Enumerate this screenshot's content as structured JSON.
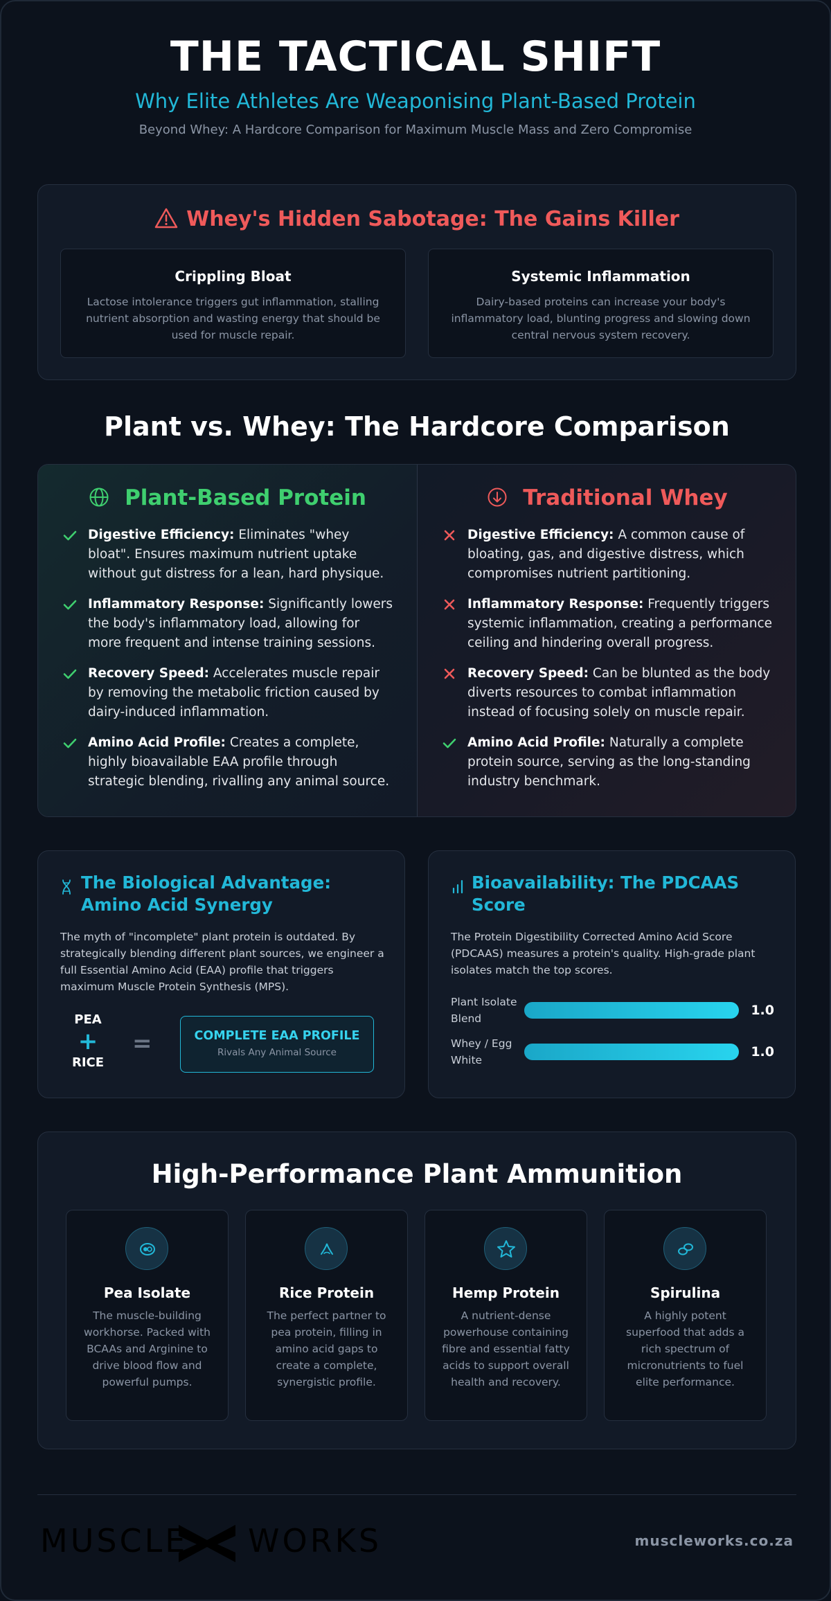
{
  "header": {
    "title": "THE TACTICAL SHIFT",
    "subtitle": "Why Elite Athletes Are Weaponising Plant-Based Protein",
    "tagline": "Beyond Whey: A Hardcore Comparison for Maximum Muscle Mass and Zero Compromise"
  },
  "sabotage": {
    "title": "Whey's Hidden Sabotage: The Gains Killer",
    "icon": "warning-icon",
    "accent": "#ef5a5a",
    "cards": [
      {
        "title": "Crippling Bloat",
        "body": "Lactose intolerance triggers gut inflammation, stalling nutrient absorption and wasting energy that should be used for muscle repair."
      },
      {
        "title": "Systemic Inflammation",
        "body": "Dairy-based proteins can increase your body's inflammatory load, blunting progress and slowing down central nervous system recovery."
      }
    ]
  },
  "comparison": {
    "heading": "Plant vs. Whey: The Hardcore Comparison",
    "plant": {
      "title": "Plant-Based Protein",
      "icon": "globe-icon",
      "color": "#3fcf6f",
      "items": [
        {
          "label": "Digestive Efficiency:",
          "text": " Eliminates \"whey bloat\". Ensures maximum nutrient uptake without gut distress for a lean, hard physique.",
          "mark": "check"
        },
        {
          "label": "Inflammatory Response:",
          "text": " Significantly lowers the body's inflammatory load, allowing for more frequent and intense training sessions.",
          "mark": "check"
        },
        {
          "label": "Recovery Speed:",
          "text": " Accelerates muscle repair by removing the metabolic friction caused by dairy-induced inflammation.",
          "mark": "check"
        },
        {
          "label": "Amino Acid Profile:",
          "text": " Creates a complete, highly bioavailable EAA profile through strategic blending, rivalling any animal source.",
          "mark": "check"
        }
      ]
    },
    "whey": {
      "title": "Traditional Whey",
      "icon": "arrow-down-circle-icon",
      "color": "#ef5a5a",
      "items": [
        {
          "label": "Digestive Efficiency:",
          "text": " A common cause of bloating, gas, and digestive distress, which compromises nutrient partitioning.",
          "mark": "cross"
        },
        {
          "label": "Inflammatory Response:",
          "text": " Frequently triggers systemic inflammation, creating a performance ceiling and hindering overall progress.",
          "mark": "cross"
        },
        {
          "label": "Recovery Speed:",
          "text": " Can be blunted as the body diverts resources to combat inflammation instead of focusing solely on muscle repair.",
          "mark": "cross"
        },
        {
          "label": "Amino Acid Profile:",
          "text": " Naturally a complete protein source, serving as the long-standing industry benchmark.",
          "mark": "check"
        }
      ]
    }
  },
  "synergy": {
    "title": "The Biological Advantage: Amino Acid Synergy",
    "icon": "dna-icon",
    "body": "The myth of \"incomplete\" plant protein is outdated. By strategically blending different plant sources, we engineer a full Essential Amino Acid (EAA) profile that triggers maximum Muscle Protein Synthesis (MPS).",
    "pea": "PEA",
    "plus": "+",
    "rice": "RICE",
    "equals": "=",
    "result_title": "COMPLETE EAA PROFILE",
    "result_sub": "Rivals Any Animal Source"
  },
  "pdcaas": {
    "title": "Bioavailability: The PDCAAS Score",
    "icon": "bar-chart-icon",
    "body": "The Protein Digestibility Corrected Amino Acid Score (PDCAAS) measures a protein's quality. High-grade plant isolates match the top scores.",
    "bars": [
      {
        "label": "Plant Isolate Blend",
        "value": "1.0",
        "fraction": 1.0
      },
      {
        "label": "Whey / Egg White",
        "value": "1.0",
        "fraction": 1.0
      }
    ]
  },
  "ammo": {
    "title": "High-Performance Plant Ammunition",
    "cards": [
      {
        "name": "Pea Isolate",
        "icon": "pea-pod-icon",
        "body": "The muscle-building workhorse. Packed with BCAAs and Arginine to drive blood flow and powerful pumps."
      },
      {
        "name": "Rice Protein",
        "icon": "rice-grain-icon",
        "body": "The perfect partner to pea protein, filling in amino acid gaps to create a complete, synergistic profile."
      },
      {
        "name": "Hemp Protein",
        "icon": "star-icon",
        "body": "A nutrient-dense powerhouse containing fibre and essential fatty acids to support overall health and recovery."
      },
      {
        "name": "Spirulina",
        "icon": "algae-icon",
        "body": "A highly potent superfood that adds a rich spectrum of micronutrients to fuel elite performance."
      }
    ]
  },
  "footer": {
    "logo_left": "MUSCLE",
    "logo_right": "WORKS",
    "site": "muscleworks.co.za"
  },
  "colors": {
    "background": "#0c121c",
    "accent": "#22b8d8",
    "danger": "#ef5a5a",
    "success": "#3fcf6f"
  }
}
